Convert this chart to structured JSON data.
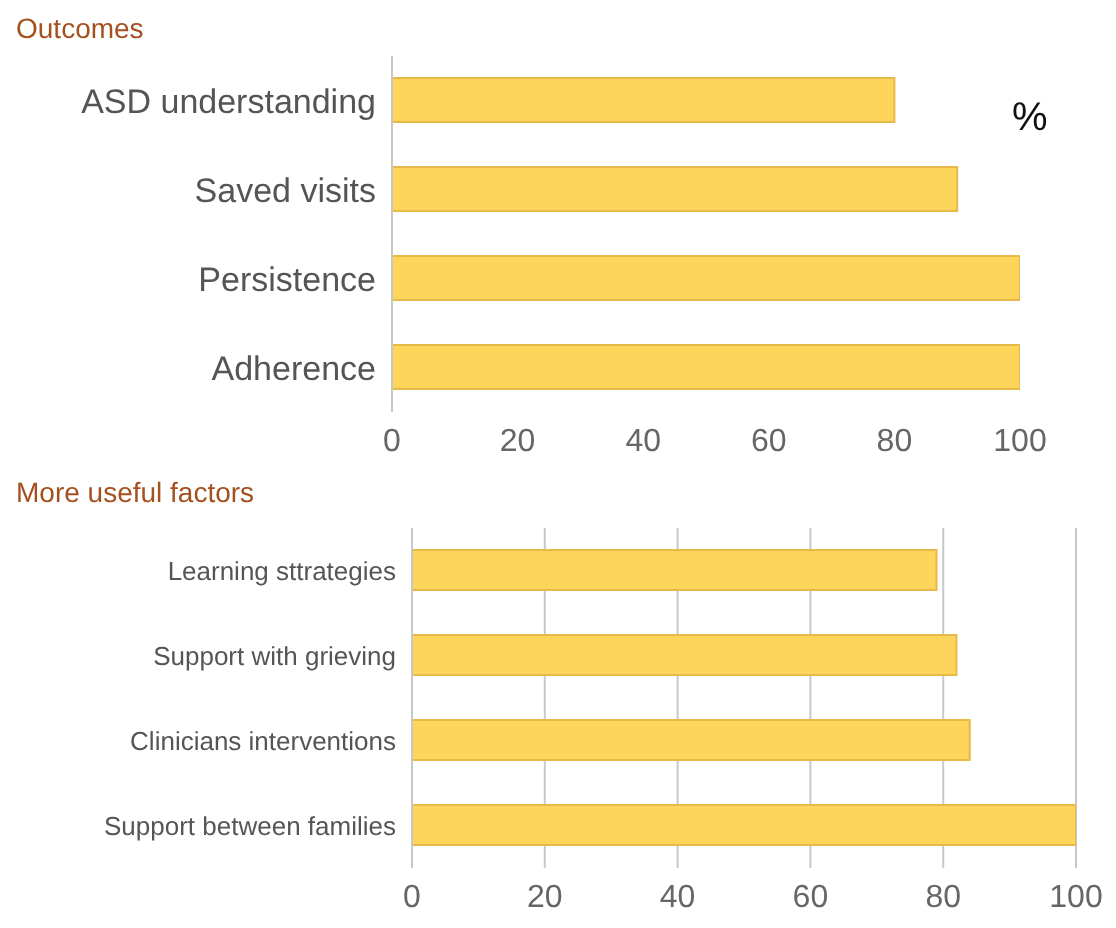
{
  "chart_data": [
    {
      "type": "bar",
      "title": "Outcomes",
      "orientation": "horizontal",
      "categories": [
        "ASD understanding",
        "Saved visits",
        "Persistence",
        "Adherence"
      ],
      "values": [
        80,
        90,
        100,
        100
      ],
      "color": "#fcd55a",
      "xlim": [
        0,
        100
      ],
      "xticks": [
        0,
        20,
        40,
        60,
        80,
        100
      ],
      "grid": false,
      "annotations": [
        "%"
      ]
    },
    {
      "type": "bar",
      "title": "More useful factors",
      "orientation": "horizontal",
      "categories": [
        "Learning sttrategies",
        "Support with grieving",
        "Clinicians interventions",
        "Support between families"
      ],
      "values": [
        79,
        82,
        84,
        100
      ],
      "color": "#fcd55a",
      "xlim": [
        0,
        100
      ],
      "xticks": [
        0,
        20,
        40,
        60,
        80,
        100
      ],
      "grid": "x"
    }
  ]
}
